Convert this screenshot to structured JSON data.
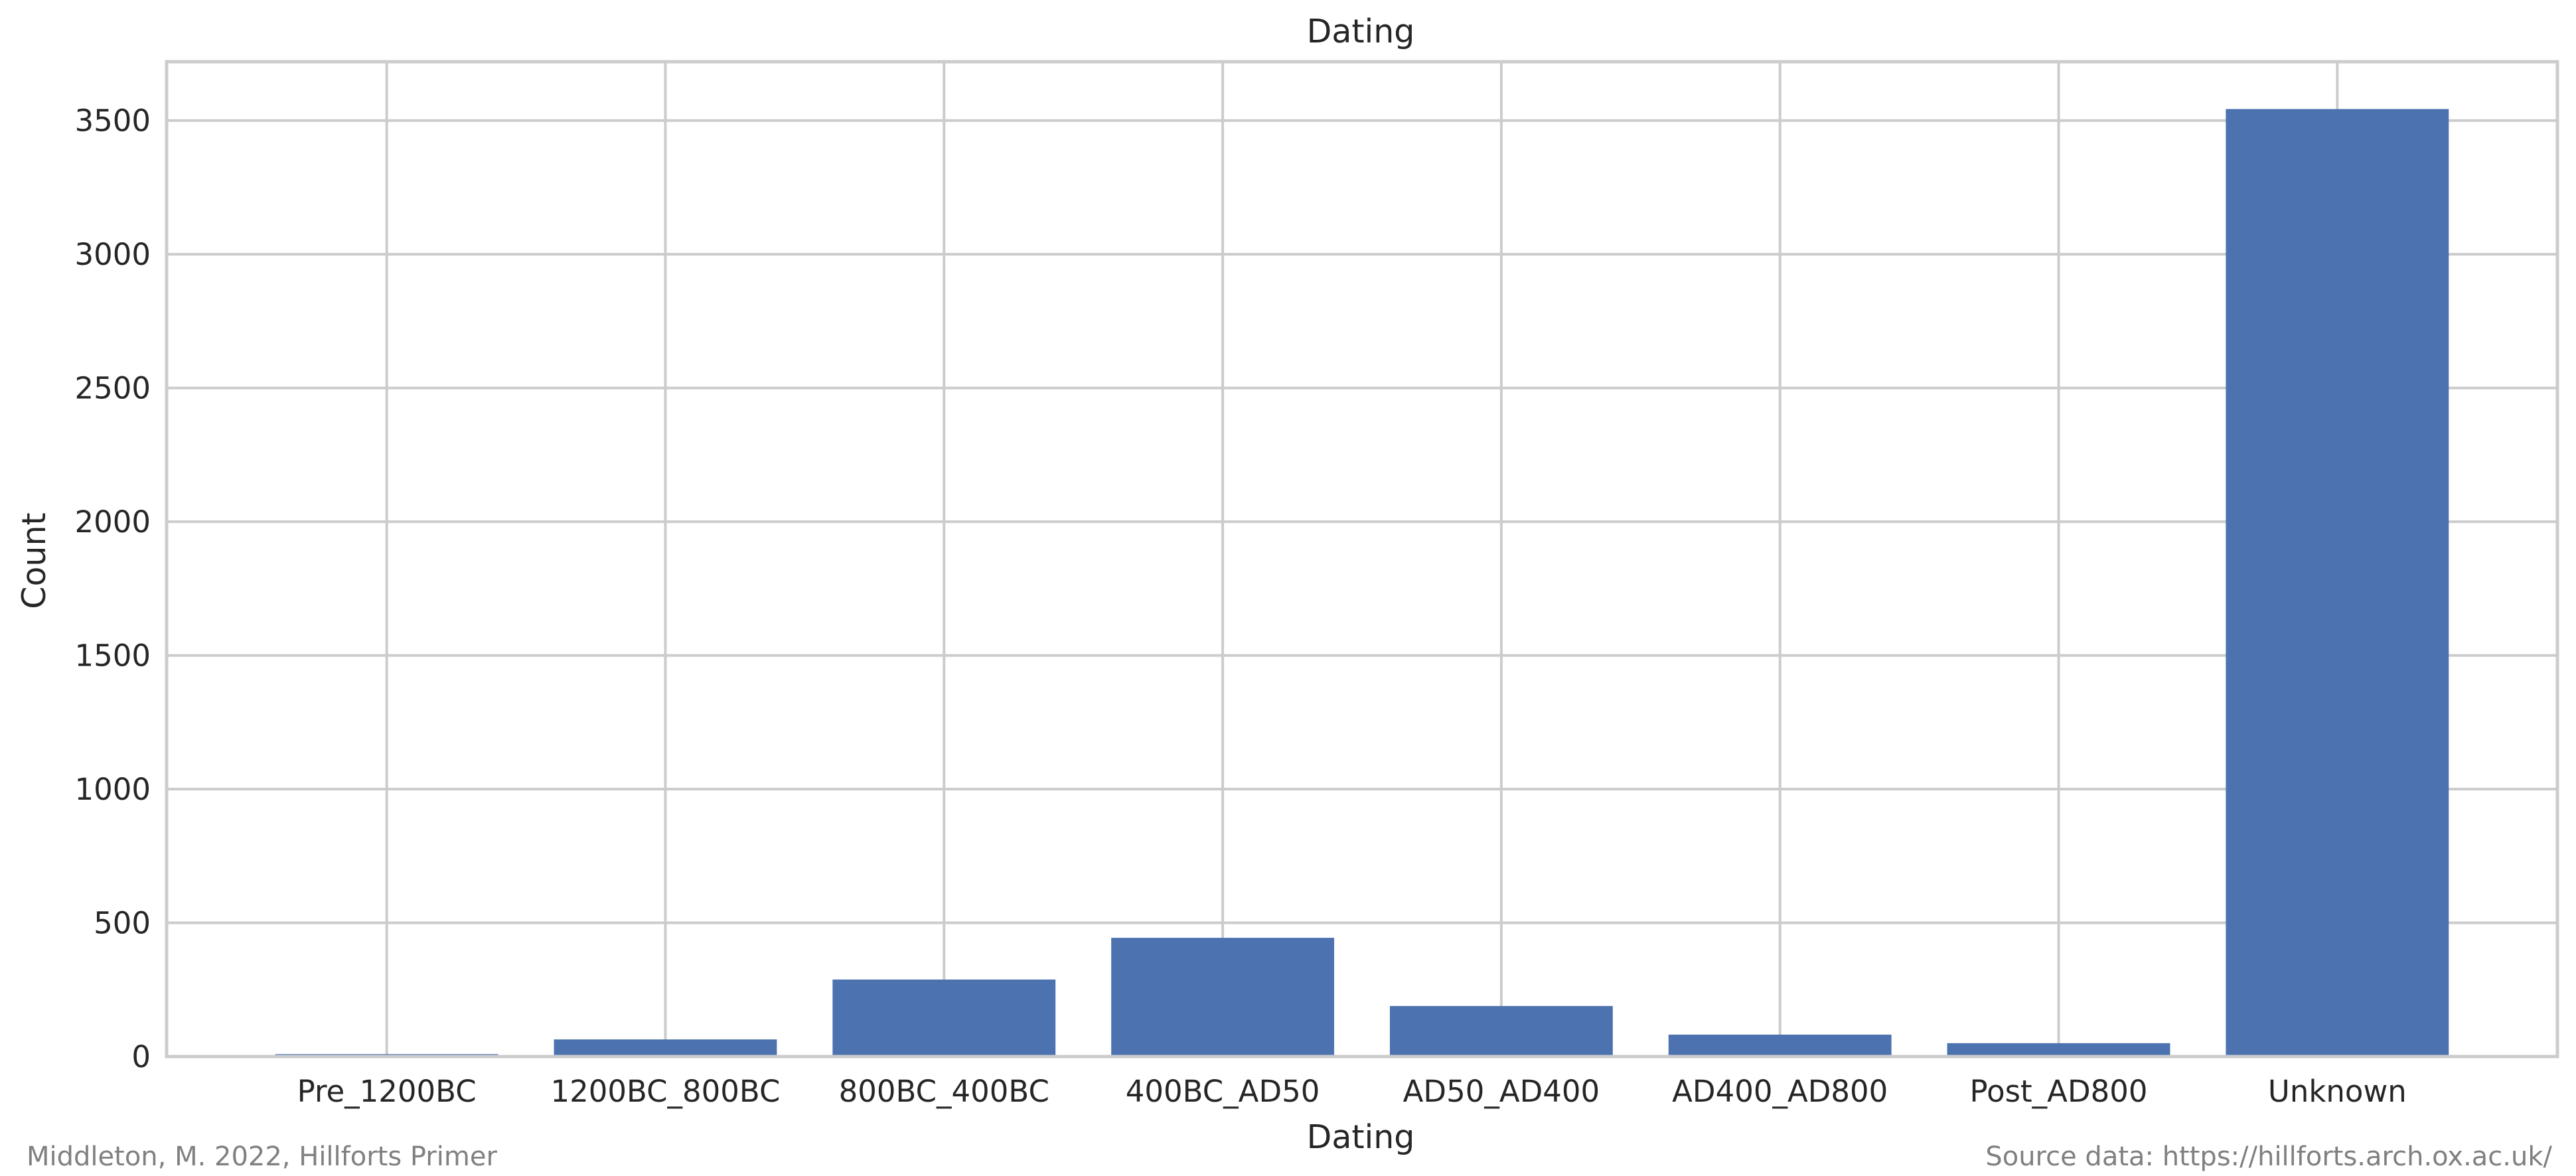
{
  "chart_data": {
    "type": "bar",
    "title": "Dating",
    "xlabel": "Dating",
    "ylabel": "Count",
    "categories": [
      "Pre_1200BC",
      "1200BC_800BC",
      "800BC_400BC",
      "400BC_AD50",
      "AD50_AD400",
      "AD400_AD800",
      "Post_AD800",
      "Unknown"
    ],
    "values": [
      9,
      64,
      288,
      444,
      189,
      82,
      50,
      3543
    ],
    "ylim": [
      0,
      3720
    ],
    "yticks": [
      0,
      500,
      1000,
      1500,
      2000,
      2500,
      3000,
      3500
    ],
    "grid": true,
    "bar_color": "#4c72b0"
  },
  "footer": {
    "credit": "Middleton, M. 2022, Hillforts Primer",
    "source": "Source data: https://hillforts.arch.ox.ac.uk/"
  }
}
